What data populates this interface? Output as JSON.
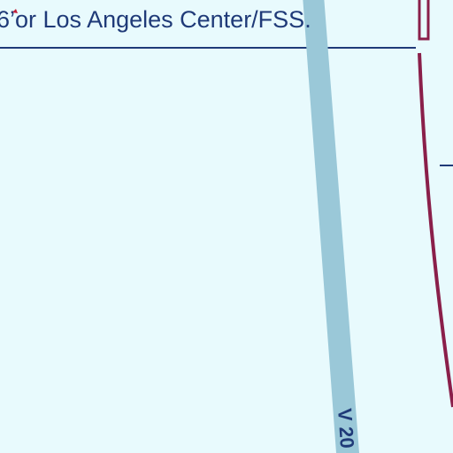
{
  "chart_note": {
    "text": "6’or Los Angeles Center/FSS."
  },
  "airway": {
    "label": "V 20"
  },
  "colors": {
    "background": "#e8fafd",
    "airway_band": "#9ac8d8",
    "boundary_line": "#8a1f4a",
    "note_border": "#1f3a78",
    "text": "#1f3a78"
  }
}
